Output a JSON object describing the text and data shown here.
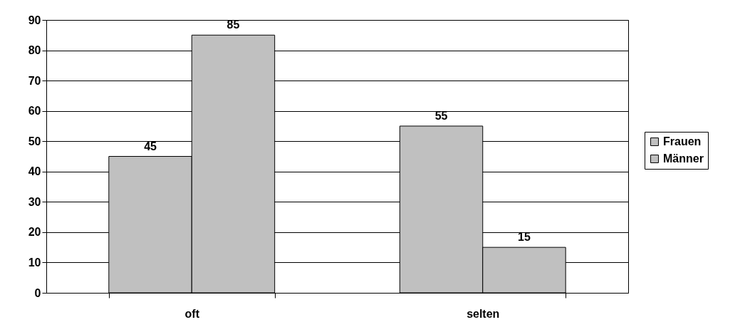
{
  "chart_data": {
    "type": "bar",
    "categories": [
      "oft",
      "selten"
    ],
    "series": [
      {
        "name": "Frauen",
        "color": "#c0c0c0",
        "values": [
          45,
          55
        ]
      },
      {
        "name": "Männer",
        "color": "#c0c0c0",
        "values": [
          85,
          15
        ]
      }
    ],
    "ylim": [
      0,
      90
    ],
    "yticks": [
      0,
      10,
      20,
      30,
      40,
      50,
      60,
      70,
      80,
      90
    ],
    "grid": "y",
    "legend": "right",
    "data_labels": true
  }
}
